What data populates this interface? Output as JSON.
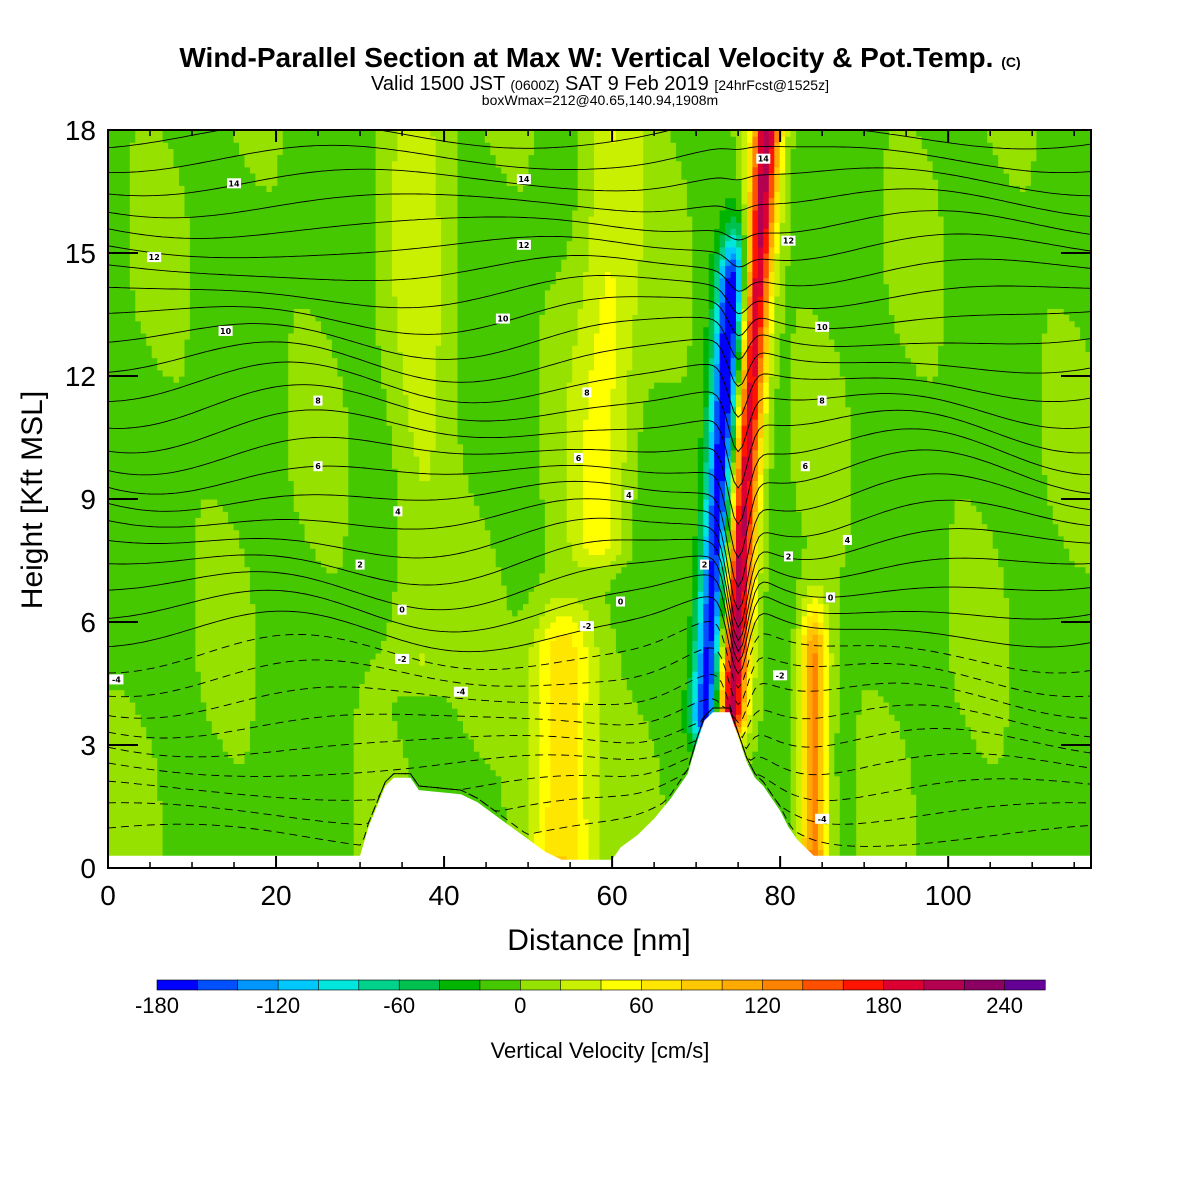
{
  "title": {
    "main": "Wind-Parallel Section at Max W: Vertical Velocity & Pot.Temp.",
    "copyright": "(C)",
    "valid_prefix": "Valid 1500 JST",
    "valid_utc": "(0600Z)",
    "valid_date": "SAT 9 Feb 2019",
    "forecast": "[24hrFcst@1525z]",
    "box": "boxWmax=212@40.65,140.94,1908m"
  },
  "chart_data": {
    "type": "heatmap",
    "xlabel": "Distance [nm]",
    "ylabel": "Height [Kft MSL]",
    "xlim": [
      0,
      117
    ],
    "ylim": [
      0,
      18
    ],
    "x_ticks": [
      "0",
      "20",
      "40",
      "60",
      "80",
      "100"
    ],
    "y_ticks": [
      "0",
      "3",
      "6",
      "9",
      "12",
      "15",
      "18"
    ],
    "grid": false,
    "colorbar": {
      "title": "Vertical Velocity [cm/s]",
      "min": -180,
      "max": 260,
      "step": 20,
      "tick_labels": [
        "-180",
        "-120",
        "-60",
        "0",
        "60",
        "120",
        "180",
        "240"
      ],
      "colors": [
        "#0000ff",
        "#0050ff",
        "#0096ff",
        "#00c8ff",
        "#00e6dc",
        "#00d28c",
        "#00c050",
        "#00b400",
        "#46c800",
        "#96e100",
        "#c8f000",
        "#ffff00",
        "#ffe600",
        "#ffc800",
        "#ffaa00",
        "#ff8200",
        "#ff5000",
        "#ff1400",
        "#dc0032",
        "#b40050",
        "#8c0064",
        "#640096"
      ]
    },
    "terrain_profile_kft": [
      [
        0,
        0.3
      ],
      [
        30,
        0.3
      ],
      [
        31,
        1.0
      ],
      [
        32,
        1.5
      ],
      [
        33,
        2.0
      ],
      [
        34,
        2.2
      ],
      [
        36,
        2.2
      ],
      [
        37,
        1.9
      ],
      [
        42,
        1.8
      ],
      [
        44,
        1.6
      ],
      [
        46,
        1.3
      ],
      [
        48,
        1.0
      ],
      [
        50,
        0.7
      ],
      [
        52,
        0.4
      ],
      [
        54,
        0.2
      ],
      [
        60,
        0.2
      ],
      [
        61,
        0.5
      ],
      [
        63,
        0.8
      ],
      [
        65,
        1.2
      ],
      [
        67,
        1.7
      ],
      [
        69,
        2.3
      ],
      [
        70,
        3.0
      ],
      [
        71,
        3.6
      ],
      [
        72,
        3.8
      ],
      [
        74,
        3.8
      ],
      [
        75,
        3.2
      ],
      [
        76,
        2.6
      ],
      [
        77,
        2.2
      ],
      [
        78,
        2.0
      ],
      [
        80,
        1.4
      ],
      [
        81,
        1.0
      ],
      [
        82,
        0.7
      ],
      [
        83,
        0.5
      ],
      [
        84,
        0.3
      ],
      [
        117,
        0.3
      ]
    ],
    "vertical_velocity_features": [
      {
        "name": "strong updraft",
        "x_center": 76,
        "x_slope_per_kft": 0.3,
        "y_range": [
          3.8,
          18
        ],
        "peak": 212
      },
      {
        "name": "strong downdraft",
        "x_center": 73,
        "x_slope_per_kft": 0.3,
        "y_range": [
          3.8,
          14
        ],
        "peak": -180
      },
      {
        "name": "lee updraft",
        "x_center": 84,
        "x_slope_per_kft": 0,
        "y_range": [
          0,
          5
        ],
        "peak": 140
      },
      {
        "name": "plume updraft",
        "x_center": 54,
        "x_slope_per_kft": 0,
        "y_range": [
          0,
          5
        ],
        "peak": 90
      },
      {
        "name": "upper updraft band",
        "x_center": 59,
        "x_slope_per_kft": 0.1,
        "y_range": [
          8,
          18
        ],
        "peak": 50
      },
      {
        "name": "updraft band",
        "x_center": 37,
        "x_slope_per_kft": 0,
        "y_range": [
          5,
          18
        ],
        "peak": 30
      }
    ],
    "isentrope_labels": [
      {
        "x": 15,
        "y": 16.7,
        "text": "14"
      },
      {
        "x": 5.5,
        "y": 14.9,
        "text": "12"
      },
      {
        "x": 14,
        "y": 13.1,
        "text": "10"
      },
      {
        "x": 25,
        "y": 11.4,
        "text": "8"
      },
      {
        "x": 25,
        "y": 9.8,
        "text": "6"
      },
      {
        "x": 34.5,
        "y": 8.7,
        "text": "4"
      },
      {
        "x": 30,
        "y": 7.4,
        "text": "2"
      },
      {
        "x": 35,
        "y": 6.3,
        "text": "0"
      },
      {
        "x": 35,
        "y": 5.1,
        "text": "-2"
      },
      {
        "x": 1,
        "y": 4.6,
        "text": "-4"
      },
      {
        "x": 42,
        "y": 4.3,
        "text": "-4"
      },
      {
        "x": 49.5,
        "y": 16.8,
        "text": "14"
      },
      {
        "x": 49.5,
        "y": 15.2,
        "text": "12"
      },
      {
        "x": 47,
        "y": 13.4,
        "text": "10"
      },
      {
        "x": 57,
        "y": 11.6,
        "text": "8"
      },
      {
        "x": 56,
        "y": 10.0,
        "text": "6"
      },
      {
        "x": 62,
        "y": 9.1,
        "text": "4"
      },
      {
        "x": 61,
        "y": 6.5,
        "text": "0"
      },
      {
        "x": 57,
        "y": 5.9,
        "text": "-2"
      },
      {
        "x": 78,
        "y": 17.3,
        "text": "14"
      },
      {
        "x": 81,
        "y": 15.3,
        "text": "12"
      },
      {
        "x": 85,
        "y": 13.2,
        "text": "10"
      },
      {
        "x": 85,
        "y": 11.4,
        "text": "8"
      },
      {
        "x": 83,
        "y": 9.8,
        "text": "6"
      },
      {
        "x": 88,
        "y": 8.0,
        "text": "4"
      },
      {
        "x": 86,
        "y": 6.6,
        "text": "0"
      },
      {
        "x": 71,
        "y": 7.4,
        "text": "2"
      },
      {
        "x": 81,
        "y": 7.6,
        "text": "2"
      },
      {
        "x": 80,
        "y": 4.7,
        "text": "-2"
      },
      {
        "x": 85,
        "y": 1.2,
        "text": "-4"
      }
    ]
  }
}
